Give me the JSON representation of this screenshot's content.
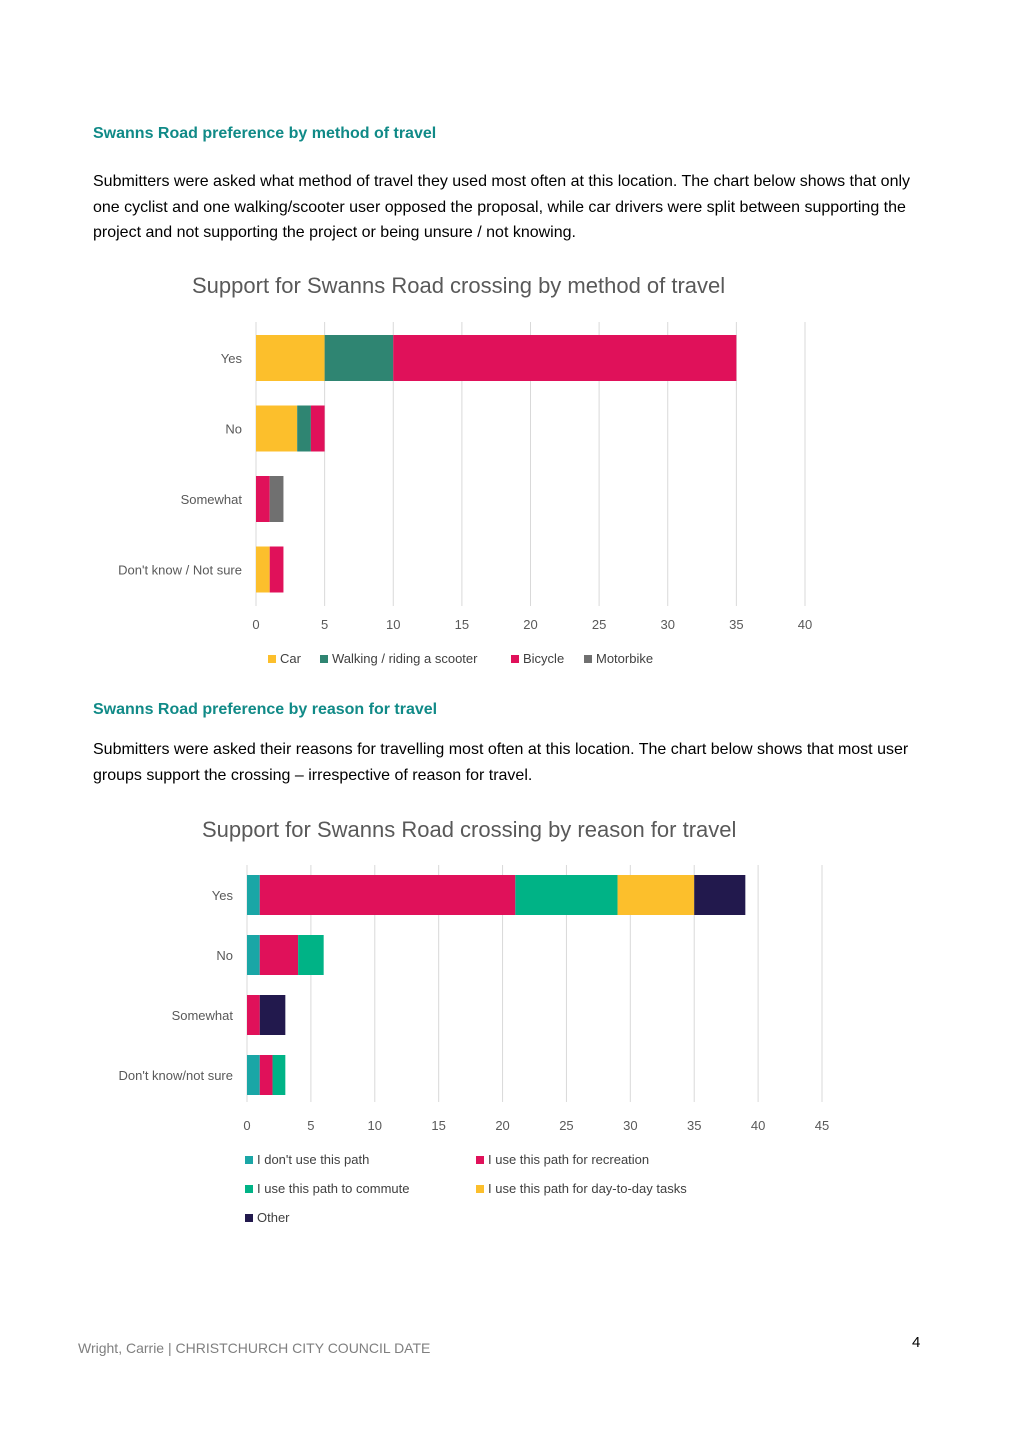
{
  "section1": {
    "heading": "Swanns Road preference by method of travel",
    "paragraph": "Submitters were asked what method of travel they used most often at this location. The chart below shows that only one cyclist and one walking/scooter user opposed the proposal, while car drivers were split between supporting the project and not supporting the project or being unsure / not knowing."
  },
  "section2": {
    "heading": "Swanns Road preference by reason for travel",
    "paragraph": "Submitters were asked their reasons for travelling most often at this location. The chart below shows that most user groups support the crossing – irrespective of reason for travel."
  },
  "footer": {
    "text": "Wright, Carrie | CHRISTCHURCH CITY COUNCIL   DATE",
    "page_number": "4"
  },
  "chart_data": [
    {
      "type": "bar",
      "orientation": "horizontal",
      "stacked": true,
      "title": "Support for Swanns Road crossing by method of travel",
      "categories": [
        "Yes",
        "No",
        "Somewhat",
        "Don't know / Not sure"
      ],
      "series": [
        {
          "name": "Car",
          "color": "#fcbf2c",
          "values": [
            5,
            3,
            0,
            1
          ]
        },
        {
          "name": "Walking / riding a scooter",
          "color": "#2f8572",
          "values": [
            5,
            1,
            0,
            0
          ]
        },
        {
          "name": "Bicycle",
          "color": "#e0115a",
          "values": [
            25,
            1,
            1,
            1
          ]
        },
        {
          "name": "Motorbike",
          "color": "#707070",
          "values": [
            0,
            0,
            1,
            0
          ]
        }
      ],
      "xlim": [
        0,
        40
      ],
      "xticks": [
        "0",
        "5",
        "10",
        "15",
        "20",
        "25",
        "30",
        "35",
        "40"
      ],
      "grid": true,
      "legend": "bottom"
    },
    {
      "type": "bar",
      "orientation": "horizontal",
      "stacked": true,
      "title": "Support for Swanns Road crossing by reason for travel",
      "categories": [
        "Yes",
        "No",
        "Somewhat",
        "Don't know/not sure"
      ],
      "series": [
        {
          "name": "I don't use this path",
          "color": "#1aa6a6",
          "values": [
            1,
            1,
            0,
            1
          ]
        },
        {
          "name": "I use this path for recreation",
          "color": "#e0115a",
          "values": [
            20,
            3,
            1,
            1
          ]
        },
        {
          "name": "I use this path to commute",
          "color": "#00b386",
          "values": [
            8,
            2,
            0,
            1
          ]
        },
        {
          "name": "I use this path for day-to-day tasks",
          "color": "#fcbf2c",
          "values": [
            6,
            0,
            0,
            0
          ]
        },
        {
          "name": "Other",
          "color": "#22194d",
          "values": [
            4,
            0,
            2,
            0
          ]
        }
      ],
      "xlim": [
        0,
        45
      ],
      "xticks": [
        "0",
        "5",
        "10",
        "15",
        "20",
        "25",
        "30",
        "35",
        "40",
        "45"
      ],
      "grid": true,
      "legend": "bottom"
    }
  ]
}
